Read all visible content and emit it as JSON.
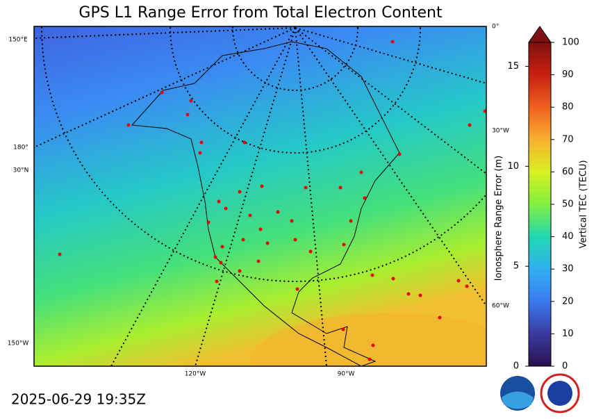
{
  "title": "GPS L1 Range Error from Total Electron Content",
  "timestamp": "2025-06-29 19:35Z",
  "map_labels": {
    "left": [
      "150°E",
      "180°",
      "30°N",
      "150°W"
    ],
    "right": [
      "0°",
      "30°W",
      "60°W"
    ],
    "bottom": [
      "120°W",
      "90°W"
    ]
  },
  "colorbar": {
    "label": "Vertical TEC (TECU)",
    "lim": [
      0,
      100
    ],
    "ticks": [
      0,
      10,
      20,
      30,
      40,
      50,
      60,
      70,
      80,
      90,
      100
    ]
  },
  "range_axis": {
    "label": "Ionosphere Range Error (m)",
    "lim": [
      0,
      16.2
    ],
    "ticks": [
      0,
      5,
      10,
      15
    ]
  }
}
